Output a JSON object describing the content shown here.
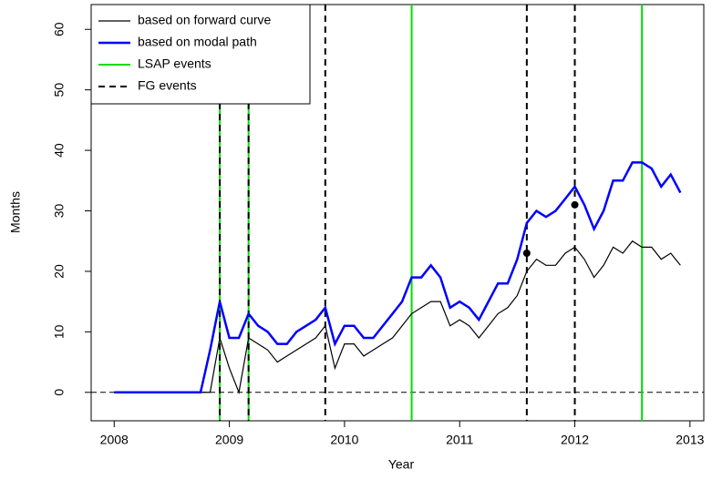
{
  "chart_data": {
    "type": "line",
    "x_label": "Year",
    "y_label": "Months",
    "x": [
      2008,
      2008.083,
      2008.167,
      2008.25,
      2008.333,
      2008.417,
      2008.5,
      2008.583,
      2008.667,
      2008.75,
      2008.833,
      2008.917,
      2009,
      2009.083,
      2009.167,
      2009.25,
      2009.333,
      2009.417,
      2009.5,
      2009.583,
      2009.667,
      2009.75,
      2009.833,
      2009.917,
      2010,
      2010.083,
      2010.167,
      2010.25,
      2010.333,
      2010.417,
      2010.5,
      2010.583,
      2010.667,
      2010.75,
      2010.833,
      2010.917,
      2011,
      2011.083,
      2011.167,
      2011.25,
      2011.333,
      2011.417,
      2011.5,
      2011.583,
      2011.667,
      2011.75,
      2011.833,
      2011.917,
      2012,
      2012.083,
      2012.167,
      2012.25,
      2012.333,
      2012.417,
      2012.5,
      2012.583,
      2012.667,
      2012.75,
      2012.833,
      2012.917
    ],
    "series": [
      {
        "name": "based on forward curve",
        "color": "#000000",
        "values": [
          0,
          0,
          0,
          0,
          0,
          0,
          0,
          0,
          0,
          0,
          0,
          9,
          4,
          0,
          9,
          8,
          7,
          5,
          6,
          7,
          8,
          9,
          11,
          4,
          8,
          8,
          6,
          7,
          8,
          9,
          11,
          13,
          14,
          15,
          15,
          11,
          12,
          11,
          9,
          11,
          13,
          14,
          16,
          20,
          22,
          21,
          21,
          23,
          24,
          22,
          19,
          21,
          24,
          23,
          25,
          24,
          24,
          22,
          23,
          21
        ]
      },
      {
        "name": "based on modal path",
        "color": "#0000ff",
        "values": [
          0,
          0,
          0,
          0,
          0,
          0,
          0,
          0,
          0,
          0,
          7,
          15,
          9,
          9,
          13,
          11,
          10,
          8,
          8,
          10,
          11,
          12,
          14,
          8,
          11,
          11,
          9,
          9,
          11,
          13,
          15,
          19,
          19,
          21,
          19,
          14,
          15,
          14,
          12,
          15,
          18,
          18,
          22,
          28,
          30,
          29,
          30,
          32,
          34,
          31,
          27,
          30,
          35,
          35,
          38,
          38,
          37,
          34,
          36,
          33
        ]
      }
    ],
    "vlines": [
      {
        "name": "LSAP events",
        "color": "#00dd00",
        "dashed": false,
        "x": [
          2008.917,
          2009.167,
          2010.583,
          2012.583
        ]
      },
      {
        "name": "FG events",
        "color": "#000000",
        "dashed": true,
        "x": [
          2008.917,
          2009.167,
          2009.833,
          2011.583,
          2012.0
        ]
      }
    ],
    "points": {
      "x": [
        2011.583,
        2012.0
      ],
      "y": [
        23,
        31
      ],
      "color": "#000000"
    },
    "hline": 0,
    "xlim": [
      2007.8,
      2013.12
    ],
    "ylim": [
      -4.7,
      64.1
    ],
    "xticks": [
      2008,
      2009,
      2010,
      2011,
      2012,
      2013
    ],
    "yticks": [
      0,
      10,
      20,
      30,
      40,
      50,
      60
    ],
    "legend": "top-left"
  }
}
